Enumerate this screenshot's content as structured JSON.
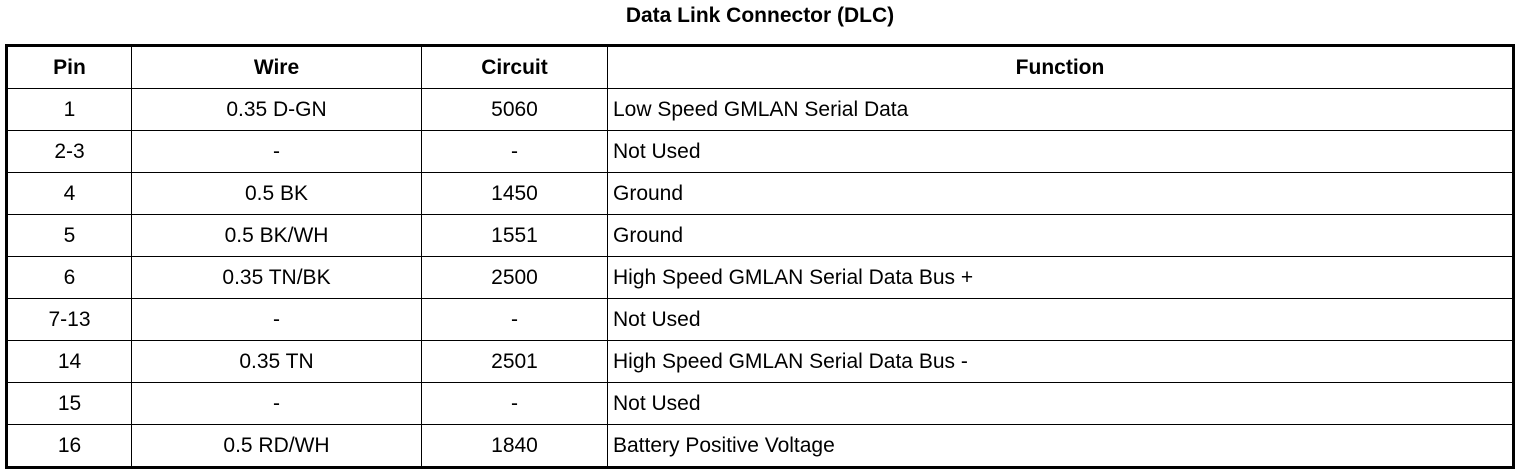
{
  "title": "Data Link Connector (DLC)",
  "columns": [
    "Pin",
    "Wire",
    "Circuit",
    "Function"
  ],
  "rows": [
    [
      "1",
      "0.35 D-GN",
      "5060",
      "Low Speed GMLAN Serial Data"
    ],
    [
      "2-3",
      "-",
      "-",
      "Not Used"
    ],
    [
      "4",
      "0.5 BK",
      "1450",
      "Ground"
    ],
    [
      "5",
      "0.5 BK/WH",
      "1551",
      "Ground"
    ],
    [
      "6",
      "0.35 TN/BK",
      "2500",
      "High Speed GMLAN Serial Data Bus +"
    ],
    [
      "7-13",
      "-",
      "-",
      "Not Used"
    ],
    [
      "14",
      "0.35 TN",
      "2501",
      "High Speed GMLAN Serial Data Bus -"
    ],
    [
      "15",
      "-",
      "-",
      "Not Used"
    ],
    [
      "16",
      "0.5 RD/WH",
      "1840",
      "Battery Positive Voltage"
    ]
  ]
}
